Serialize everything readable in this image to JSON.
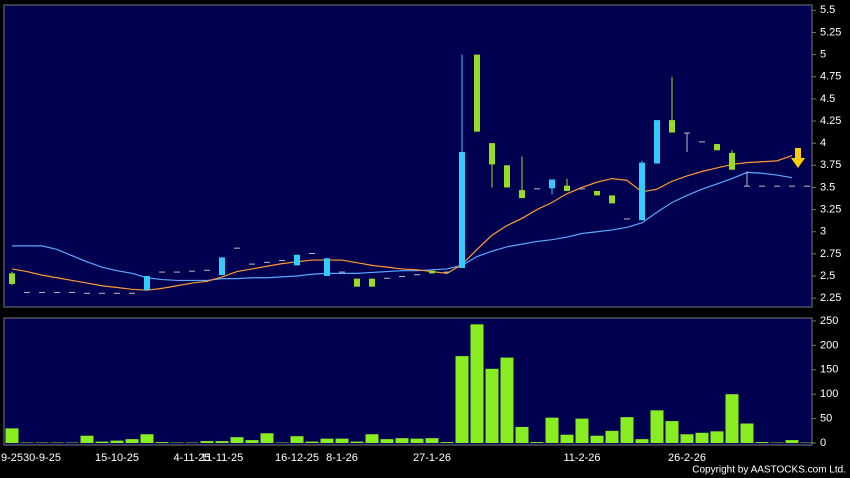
{
  "chart_data": [
    {
      "type": "candlestick",
      "up_color": "#33ccff",
      "down_color": "#99dd22",
      "flat_color": "#bbbbbb",
      "open": [
        2.53,
        2.32,
        2.32,
        2.32,
        2.32,
        2.31,
        2.31,
        2.31,
        2.31,
        2.34,
        2.55,
        2.55,
        2.56,
        2.57,
        2.51,
        2.82,
        2.64,
        2.66,
        2.68,
        2.62,
        2.76,
        2.5,
        2.55,
        2.47,
        2.47,
        2.48,
        2.5,
        2.52,
        2.56,
        2.55,
        2.59,
        5.0,
        4.0,
        3.75,
        3.47,
        3.49,
        3.49,
        3.52,
        3.49,
        3.46,
        3.41,
        3.15,
        3.13,
        3.77,
        4.26,
        4.12,
        4.02,
        3.99,
        3.89,
        3.52,
        3.52,
        3.52,
        3.52,
        3.52
      ],
      "high": [
        2.55,
        2.32,
        2.32,
        2.32,
        2.32,
        2.31,
        2.31,
        2.31,
        2.31,
        2.5,
        2.55,
        2.55,
        2.56,
        2.57,
        2.71,
        2.82,
        2.64,
        2.66,
        2.68,
        2.74,
        2.76,
        2.7,
        2.55,
        2.47,
        2.47,
        2.48,
        2.5,
        2.52,
        2.56,
        2.55,
        5.0,
        5.0,
        4.0,
        3.75,
        3.85,
        3.49,
        3.59,
        3.6,
        3.49,
        3.46,
        3.41,
        3.15,
        3.8,
        4.26,
        4.75,
        4.12,
        4.02,
        3.99,
        3.92,
        3.68,
        3.52,
        3.52,
        3.52,
        3.52
      ],
      "low": [
        2.4,
        2.32,
        2.32,
        2.32,
        2.32,
        2.31,
        2.31,
        2.31,
        2.31,
        2.34,
        2.55,
        2.55,
        2.56,
        2.57,
        2.51,
        2.82,
        2.64,
        2.66,
        2.68,
        2.62,
        2.76,
        2.5,
        2.55,
        2.38,
        2.38,
        2.48,
        2.5,
        2.52,
        2.53,
        2.55,
        2.59,
        4.13,
        3.5,
        3.5,
        3.38,
        3.49,
        3.42,
        3.46,
        3.49,
        3.41,
        3.32,
        3.15,
        3.13,
        3.77,
        4.12,
        3.9,
        4.02,
        3.92,
        3.7,
        3.52,
        3.52,
        3.52,
        3.52,
        3.52
      ],
      "close": [
        2.41,
        2.32,
        2.32,
        2.32,
        2.32,
        2.31,
        2.31,
        2.31,
        2.31,
        2.5,
        2.55,
        2.55,
        2.56,
        2.57,
        2.71,
        2.82,
        2.64,
        2.66,
        2.68,
        2.74,
        2.76,
        2.7,
        2.55,
        2.38,
        2.38,
        2.48,
        2.5,
        2.52,
        2.53,
        2.55,
        3.9,
        4.13,
        3.76,
        3.5,
        3.38,
        3.49,
        3.59,
        3.46,
        3.49,
        3.41,
        3.32,
        3.15,
        3.78,
        4.26,
        4.12,
        4.12,
        4.02,
        3.92,
        3.7,
        3.52,
        3.52,
        3.52,
        3.52,
        3.52
      ],
      "series": [
        {
          "color": "#5aa8ff",
          "values": [
            2.84,
            2.84,
            2.84,
            2.8,
            2.73,
            2.66,
            2.6,
            2.56,
            2.53,
            2.48,
            2.46,
            2.45,
            2.45,
            2.45,
            2.47,
            2.47,
            2.48,
            2.48,
            2.49,
            2.5,
            2.52,
            2.53,
            2.53,
            2.53,
            2.54,
            2.55,
            2.56,
            2.56,
            2.57,
            2.58,
            2.62,
            2.72,
            2.78,
            2.83,
            2.86,
            2.89,
            2.91,
            2.94,
            2.98,
            3.0,
            3.02,
            3.05,
            3.1,
            3.22,
            3.33,
            3.41,
            3.48,
            3.54,
            3.6,
            3.67,
            3.66,
            3.64,
            3.61,
            null
          ]
        },
        {
          "color": "#ff9933",
          "values": [
            2.58,
            2.55,
            2.51,
            2.48,
            2.45,
            2.42,
            2.39,
            2.37,
            2.35,
            2.34,
            2.36,
            2.39,
            2.42,
            2.44,
            2.49,
            2.55,
            2.58,
            2.61,
            2.64,
            2.66,
            2.68,
            2.68,
            2.68,
            2.65,
            2.62,
            2.6,
            2.58,
            2.57,
            2.55,
            2.53,
            2.63,
            2.8,
            2.96,
            3.07,
            3.15,
            3.25,
            3.33,
            3.43,
            3.5,
            3.56,
            3.6,
            3.58,
            3.45,
            3.48,
            3.57,
            3.63,
            3.68,
            3.72,
            3.76,
            3.78,
            3.79,
            3.8,
            3.86,
            null
          ]
        }
      ],
      "ylim": [
        2.15,
        5.56
      ],
      "yticks": [
        2.25,
        2.5,
        2.75,
        3,
        3.25,
        3.5,
        3.75,
        4,
        4.25,
        4.5,
        4.75,
        5,
        5.25,
        5.5
      ]
    },
    {
      "type": "bar",
      "color": "#88ee22",
      "categories": [
        "9-25",
        null,
        "30-9-25",
        null,
        null,
        null,
        null,
        "15-10-25",
        null,
        null,
        null,
        null,
        "4-11-25",
        null,
        "11-11-25",
        null,
        null,
        null,
        null,
        "16-12-25",
        null,
        null,
        "8-1-26",
        null,
        null,
        null,
        null,
        null,
        "27-1-26",
        null,
        null,
        null,
        null,
        null,
        null,
        null,
        null,
        null,
        "11-2-26",
        null,
        null,
        null,
        null,
        null,
        null,
        "26-2-26",
        null,
        null,
        null,
        null,
        null,
        null,
        null,
        null
      ],
      "values": [
        30,
        1,
        1,
        1,
        1,
        15,
        3,
        5,
        8,
        18,
        2,
        1,
        1,
        4,
        4,
        12,
        6,
        20,
        1,
        14,
        3,
        9,
        9,
        3,
        18,
        8,
        10,
        9,
        10,
        2,
        178,
        243,
        152,
        175,
        33,
        2,
        52,
        17,
        50,
        15,
        25,
        53,
        8,
        67,
        45,
        18,
        21,
        24,
        100,
        40,
        2,
        1,
        6,
        1
      ],
      "ylim": [
        -4,
        256
      ],
      "yticks": [
        0,
        50,
        100,
        150,
        200,
        250
      ],
      "footer": "Copyright by AASTOCKS.com Ltd."
    }
  ]
}
